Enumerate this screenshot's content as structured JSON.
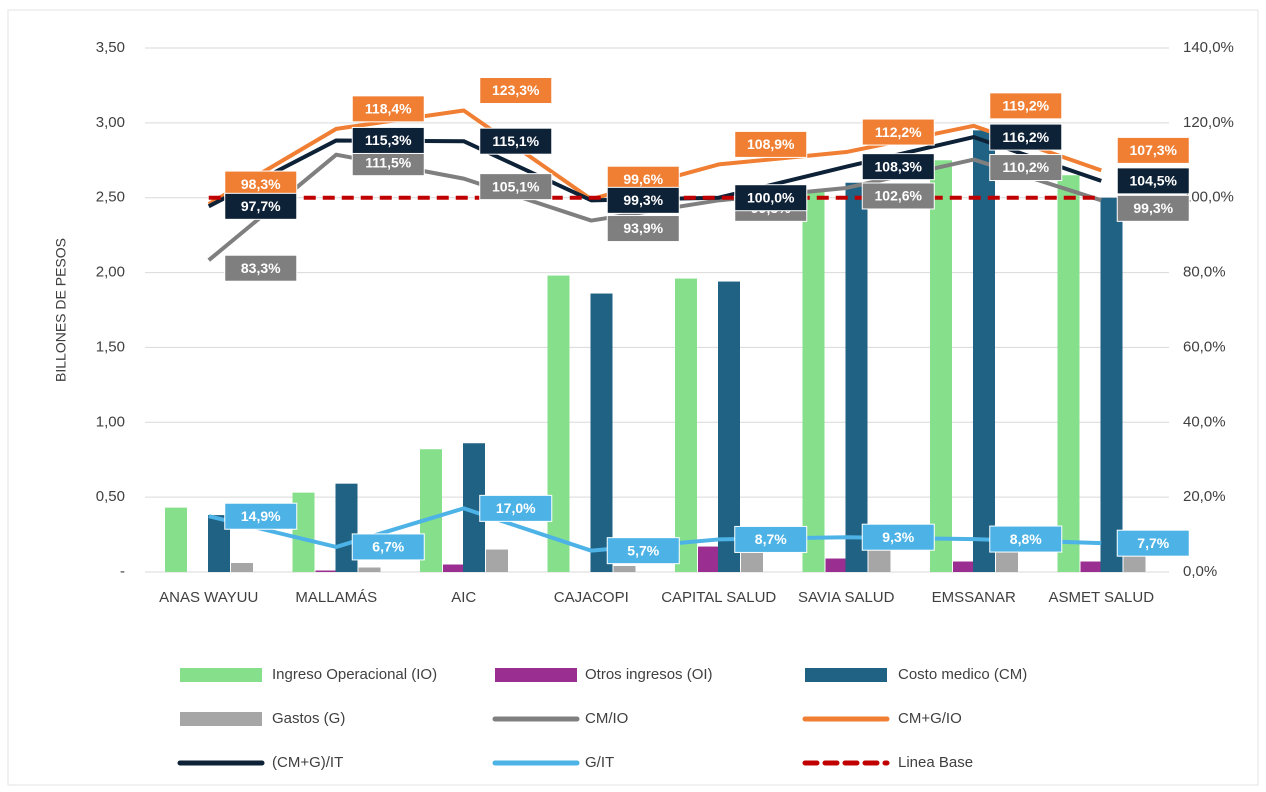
{
  "chart_data": {
    "type": "combo",
    "y_axis_label": "BILLONES DE PESOS",
    "categories": [
      "ANAS WAYUU",
      "MALLAMÁS",
      "AIC",
      "CAJACOPI",
      "CAPITAL SALUD",
      "SAVIA SALUD",
      "EMSSANAR",
      "ASMET SALUD"
    ],
    "ylim": [
      0,
      3.5
    ],
    "yticks": [
      {
        "value": 0,
        "label": "-"
      },
      {
        "value": 0.5,
        "label": "0,50"
      },
      {
        "value": 1,
        "label": "1,00"
      },
      {
        "value": 1.5,
        "label": "1,50"
      },
      {
        "value": 2,
        "label": "2,00"
      },
      {
        "value": 2.5,
        "label": "2,50"
      },
      {
        "value": 3,
        "label": "3,00"
      },
      {
        "value": 3.5,
        "label": "3,50"
      }
    ],
    "y2lim": [
      0,
      140
    ],
    "y2ticks": [
      {
        "value": 0,
        "label": "0,0%"
      },
      {
        "value": 20,
        "label": "20,0%"
      },
      {
        "value": 40,
        "label": "40,0%"
      },
      {
        "value": 60,
        "label": "60,0%"
      },
      {
        "value": 80,
        "label": "80,0%"
      },
      {
        "value": 100,
        "label": "100,0%"
      },
      {
        "value": 120,
        "label": "120,0%"
      },
      {
        "value": 140,
        "label": "140,0%"
      }
    ],
    "grid": true,
    "legend": "bottom",
    "series": [
      {
        "name": "Ingreso Operacional (IO)",
        "type": "bar",
        "color": "#86df8a",
        "values": [
          0.43,
          0.53,
          0.82,
          1.98,
          1.96,
          2.55,
          2.75,
          2.65
        ]
      },
      {
        "name": "Otros ingresos (OI)",
        "type": "bar",
        "color": "#9b2f91",
        "values": [
          0.0,
          0.01,
          0.05,
          0.0,
          0.17,
          0.09,
          0.07,
          0.07
        ]
      },
      {
        "name": "Costo medico (CM)",
        "type": "bar",
        "color": "#1f6284",
        "values": [
          0.38,
          0.59,
          0.86,
          1.86,
          1.94,
          2.6,
          2.95,
          2.5
        ]
      },
      {
        "name": "Gastos (G)",
        "type": "bar",
        "color": "#a6a6a6",
        "values": [
          0.06,
          0.03,
          0.15,
          0.04,
          0.17,
          0.16,
          0.17,
          0.15
        ]
      },
      {
        "name": "CM/IO",
        "type": "line",
        "axis": "y2",
        "color": "#7f7f7f",
        "values": [
          83.3,
          111.5,
          105.1,
          93.9,
          99.3,
          102.6,
          110.2,
          99.3
        ],
        "value_labels": [
          "83,3%",
          "111,5%",
          "105,1%",
          "93,9%",
          "99,3%",
          "102,6%",
          "110,2%",
          "99,3%"
        ]
      },
      {
        "name": "CM+G/IO",
        "type": "line",
        "axis": "y2",
        "color": "#f07f33",
        "values": [
          98.3,
          118.4,
          123.3,
          99.6,
          108.9,
          112.2,
          119.2,
          107.3
        ],
        "value_labels": [
          "98,3%",
          "118,4%",
          "123,3%",
          "99,6%",
          "108,9%",
          "112,2%",
          "119,2%",
          "107,3%"
        ]
      },
      {
        "name": "(CM+G)/IT",
        "type": "line",
        "axis": "y2",
        "color": "#0d2137",
        "values": [
          97.7,
          115.3,
          115.1,
          99.3,
          100.0,
          108.3,
          116.2,
          104.5
        ],
        "value_labels": [
          "97,7%",
          "115,3%",
          "115,1%",
          "99,3%",
          "100,0%",
          "108,3%",
          "116,2%",
          "104,5%"
        ]
      },
      {
        "name": "G/IT",
        "type": "line",
        "axis": "y2",
        "color": "#4db3e6",
        "values": [
          14.9,
          6.7,
          17.0,
          5.7,
          8.7,
          9.3,
          8.8,
          7.7
        ],
        "value_labels": [
          "14,9%",
          "6,7%",
          "17,0%",
          "5,7%",
          "8,7%",
          "9,3%",
          "8,8%",
          "7,7%"
        ]
      },
      {
        "name": "Linea Base",
        "type": "line",
        "axis": "y2",
        "color": "#c00000",
        "dashed": true,
        "values": [
          100,
          100,
          100,
          100,
          100,
          100,
          100,
          100
        ]
      }
    ]
  }
}
